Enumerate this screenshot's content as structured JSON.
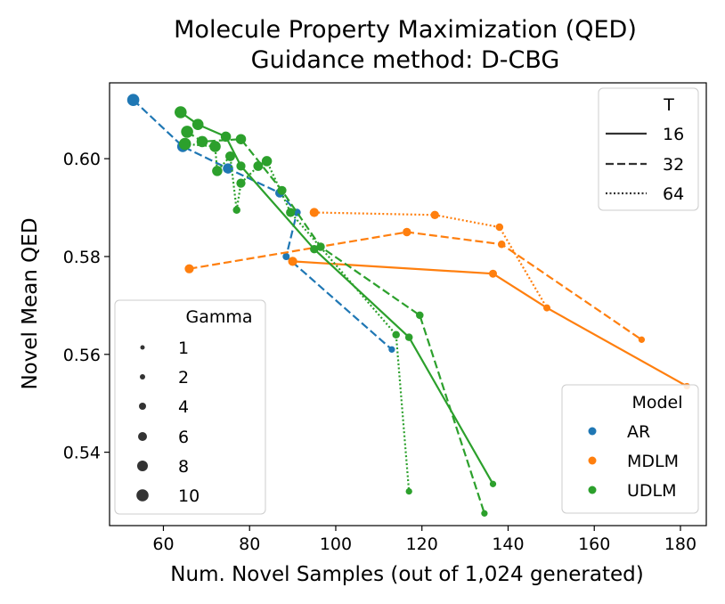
{
  "chart_data": {
    "type": "line",
    "title": "Molecule Property Maximization (QED)",
    "subtitle": "Guidance method: D-CBG",
    "xlabel": "Num. Novel Samples (out of 1,024 generated)",
    "ylabel": "Novel Mean QED",
    "xlim": [
      47.5,
      186
    ],
    "ylim": [
      0.525,
      0.6155
    ],
    "xticks": [
      60,
      80,
      100,
      120,
      140,
      160,
      180
    ],
    "yticks": [
      0.54,
      0.56,
      0.58,
      0.6
    ],
    "xtick_labels": [
      "60",
      "80",
      "100",
      "120",
      "140",
      "160",
      "180"
    ],
    "ytick_labels": [
      "0.54",
      "0.56",
      "0.58",
      "0.60"
    ],
    "grid": false,
    "legend_T": {
      "title": "T",
      "placement": "upper right",
      "entries": [
        {
          "label": "16",
          "dash": "solid"
        },
        {
          "label": "32",
          "dash": "dashed"
        },
        {
          "label": "64",
          "dash": "dotted"
        }
      ]
    },
    "legend_gamma": {
      "title": "Gamma",
      "placement": "center left",
      "entries": [
        {
          "label": "1",
          "gamma": 1
        },
        {
          "label": "2",
          "gamma": 2
        },
        {
          "label": "4",
          "gamma": 4
        },
        {
          "label": "6",
          "gamma": 6
        },
        {
          "label": "8",
          "gamma": 8
        },
        {
          "label": "10",
          "gamma": 10
        }
      ]
    },
    "legend_model": {
      "title": "Model",
      "placement": "lower right",
      "entries": [
        {
          "label": "AR",
          "color": "#1f77b4"
        },
        {
          "label": "MDLM",
          "color": "#ff7f0e"
        },
        {
          "label": "UDLM",
          "color": "#2ca02c"
        }
      ]
    },
    "series": [
      {
        "name": "AR T=32",
        "model": "AR",
        "T": 32,
        "color": "#1f77b4",
        "dash": "dashed",
        "points": [
          {
            "x": 53,
            "y": 0.612,
            "gamma": 10
          },
          {
            "x": 64.5,
            "y": 0.6025,
            "gamma": 8
          },
          {
            "x": 75,
            "y": 0.598,
            "gamma": 6
          },
          {
            "x": 87,
            "y": 0.593,
            "gamma": 4
          },
          {
            "x": 91,
            "y": 0.589,
            "gamma": 2
          },
          {
            "x": 88.5,
            "y": 0.58,
            "gamma": 1.5
          },
          {
            "x": 113,
            "y": 0.561,
            "gamma": 1
          }
        ]
      },
      {
        "name": "MDLM T=16",
        "model": "MDLM",
        "T": 16,
        "color": "#ff7f0e",
        "dash": "solid",
        "points": [
          {
            "x": 90,
            "y": 0.579,
            "gamma": 4
          },
          {
            "x": 136.5,
            "y": 0.5765,
            "gamma": 2.5
          },
          {
            "x": 149,
            "y": 0.5695,
            "gamma": 1.5
          },
          {
            "x": 181.5,
            "y": 0.5535,
            "gamma": 1
          }
        ]
      },
      {
        "name": "MDLM T=32",
        "model": "MDLM",
        "T": 32,
        "color": "#ff7f0e",
        "dash": "dashed",
        "points": [
          {
            "x": 66,
            "y": 0.5775,
            "gamma": 4
          },
          {
            "x": 116.5,
            "y": 0.585,
            "gamma": 3
          },
          {
            "x": 138.5,
            "y": 0.5825,
            "gamma": 2
          },
          {
            "x": 171,
            "y": 0.563,
            "gamma": 1
          }
        ]
      },
      {
        "name": "MDLM T=64",
        "model": "MDLM",
        "T": 64,
        "color": "#ff7f0e",
        "dash": "dotted",
        "points": [
          {
            "x": 95,
            "y": 0.589,
            "gamma": 4
          },
          {
            "x": 123,
            "y": 0.5885,
            "gamma": 3
          },
          {
            "x": 138,
            "y": 0.586,
            "gamma": 2
          },
          {
            "x": 149,
            "y": 0.5695,
            "gamma": 1
          }
        ]
      },
      {
        "name": "UDLM T=16",
        "model": "UDLM",
        "T": 16,
        "color": "#2ca02c",
        "dash": "solid",
        "points": [
          {
            "x": 64,
            "y": 0.6095,
            "gamma": 10
          },
          {
            "x": 68,
            "y": 0.607,
            "gamma": 8
          },
          {
            "x": 74.5,
            "y": 0.6045,
            "gamma": 6
          },
          {
            "x": 78,
            "y": 0.5985,
            "gamma": 4
          },
          {
            "x": 95,
            "y": 0.5815,
            "gamma": 3
          },
          {
            "x": 117,
            "y": 0.5635,
            "gamma": 2
          },
          {
            "x": 136.5,
            "y": 0.5335,
            "gamma": 1
          }
        ]
      },
      {
        "name": "UDLM T=32",
        "model": "UDLM",
        "T": 32,
        "color": "#2ca02c",
        "dash": "dashed",
        "points": [
          {
            "x": 65.5,
            "y": 0.6055,
            "gamma": 10
          },
          {
            "x": 69,
            "y": 0.6035,
            "gamma": 8
          },
          {
            "x": 78,
            "y": 0.604,
            "gamma": 6
          },
          {
            "x": 87.5,
            "y": 0.5935,
            "gamma": 4
          },
          {
            "x": 96.5,
            "y": 0.582,
            "gamma": 3
          },
          {
            "x": 119.5,
            "y": 0.568,
            "gamma": 2
          },
          {
            "x": 134.5,
            "y": 0.5275,
            "gamma": 1
          }
        ]
      },
      {
        "name": "UDLM T=64",
        "model": "UDLM",
        "T": 64,
        "color": "#2ca02c",
        "dash": "dotted",
        "points": [
          {
            "x": 65,
            "y": 0.603,
            "gamma": 10
          },
          {
            "x": 72,
            "y": 0.6025,
            "gamma": 8
          },
          {
            "x": 72.5,
            "y": 0.5975,
            "gamma": 6
          },
          {
            "x": 75.5,
            "y": 0.6005,
            "gamma": 5
          },
          {
            "x": 77,
            "y": 0.5895,
            "gamma": 2
          },
          {
            "x": 78,
            "y": 0.595,
            "gamma": 4
          },
          {
            "x": 82,
            "y": 0.5985,
            "gamma": 5
          },
          {
            "x": 84,
            "y": 0.5995,
            "gamma": 6
          },
          {
            "x": 89.5,
            "y": 0.589,
            "gamma": 4
          },
          {
            "x": 114,
            "y": 0.564,
            "gamma": 2
          },
          {
            "x": 117,
            "y": 0.532,
            "gamma": 1
          }
        ]
      }
    ]
  }
}
